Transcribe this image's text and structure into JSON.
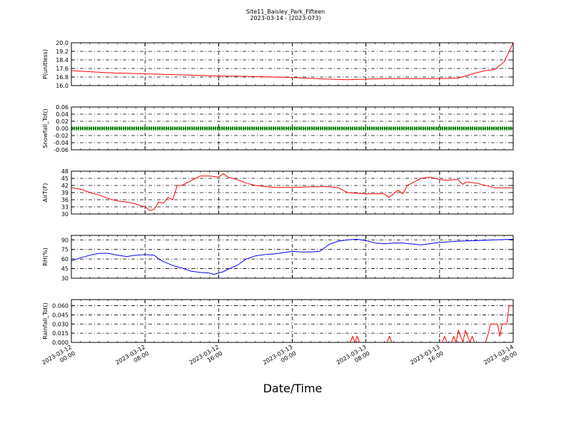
{
  "figure": {
    "title": "Site11_Baisley_Park_Fifteen",
    "subtitle": "2023-03-14 - (2023-073)",
    "xlabel": "Date/Time"
  },
  "chart_data": {
    "type": "line",
    "x_ticks": [
      "2023-03-12 00:00",
      "2023-03-12 08:00",
      "2023-03-12 16:00",
      "2023-03-13 00:00",
      "2023-03-13 08:00",
      "2023-03-13 16:00",
      "2023-03-14 00:00"
    ],
    "x_range": [
      "2023-03-12 00:00",
      "2023-03-14 00:00"
    ],
    "grid": true,
    "panels": [
      {
        "ylabel": "P(unitless)",
        "ylim": [
          16.0,
          20.0
        ],
        "yticks": [
          "16.0",
          "16.8",
          "17.6",
          "18.4",
          "19.2",
          "20.0"
        ],
        "color": "#ff0000",
        "x_hours": [
          0,
          4,
          8,
          12,
          16,
          20,
          24,
          28,
          30,
          32,
          34,
          36,
          38,
          40,
          42,
          44,
          45,
          46,
          47,
          47.5,
          48
        ],
        "values": [
          17.4,
          17.2,
          17.1,
          17.0,
          16.9,
          16.85,
          16.75,
          16.6,
          16.55,
          16.6,
          16.65,
          16.65,
          16.65,
          16.65,
          16.7,
          17.2,
          17.4,
          17.5,
          18.2,
          19.1,
          20.0
        ]
      },
      {
        "ylabel": "Snowfall_Tot()",
        "ylim": [
          -0.06,
          0.06
        ],
        "yticks": [
          "-0.06",
          "-0.04",
          "-0.02",
          "0.00",
          "0.02",
          "0.04",
          "0.06"
        ],
        "color": "#008000",
        "x_hours": [
          0,
          48
        ],
        "values": [
          0,
          0
        ]
      },
      {
        "ylabel": "AirT(F)",
        "ylim": [
          30,
          48
        ],
        "yticks": [
          "30",
          "33",
          "36",
          "39",
          "42",
          "45",
          "48"
        ],
        "color": "#ff0000",
        "x_hours": [
          0,
          1,
          2,
          3,
          4,
          5,
          6,
          7,
          7.5,
          8,
          8.5,
          9,
          9.5,
          10,
          10.5,
          11,
          11.5,
          12,
          13,
          14,
          15,
          16,
          16.5,
          17,
          18,
          19,
          20,
          22,
          24,
          26,
          28,
          29,
          30,
          32,
          33,
          33.5,
          34,
          34.5,
          35,
          35.5,
          36,
          36.5,
          37,
          38,
          39,
          40,
          41,
          41.5,
          42,
          42.5,
          43,
          44,
          46,
          48
        ],
        "values": [
          41,
          40.5,
          39,
          38,
          36.5,
          35.5,
          35,
          34.2,
          33.5,
          33,
          31.5,
          32,
          35,
          34.5,
          37,
          36,
          42,
          42,
          44,
          46,
          46,
          45.5,
          47,
          45.5,
          44.5,
          43,
          42,
          41.2,
          41.2,
          41.5,
          41.5,
          41,
          39,
          38.5,
          38.5,
          38.5,
          38.5,
          37,
          38.5,
          40,
          38.5,
          42,
          43,
          45,
          45.5,
          44.5,
          44.2,
          44.5,
          44.5,
          42.5,
          43.5,
          43,
          41,
          41
        ]
      },
      {
        "ylabel": "RH(%)",
        "ylim": [
          30,
          97
        ],
        "yticks": [
          "30",
          "45",
          "60",
          "75",
          "90"
        ],
        "color": "#0000ff",
        "x_hours": [
          0,
          1,
          2,
          3,
          4,
          5,
          6,
          7,
          8,
          9,
          9.5,
          10,
          11,
          12,
          13,
          14,
          15,
          15.5,
          16,
          16.5,
          17,
          18,
          19,
          20,
          21,
          22,
          23,
          24,
          25,
          26,
          27,
          28,
          29,
          30,
          31,
          32,
          33,
          34,
          35,
          36,
          38,
          40,
          42,
          44,
          46,
          48
        ],
        "values": [
          57,
          62,
          66,
          69,
          69,
          66,
          64,
          66,
          67,
          66,
          60,
          56,
          50,
          46,
          41,
          39,
          38,
          36,
          38,
          40,
          44,
          50,
          60,
          65,
          67,
          68,
          70,
          72,
          71,
          71,
          72,
          83,
          88,
          90,
          91,
          89,
          85,
          84,
          85,
          85,
          82,
          86,
          88,
          89,
          90,
          91
        ]
      },
      {
        "ylabel": "Rainfall_Tot()",
        "ylim": [
          0,
          0.07
        ],
        "yticks": [
          "0.000",
          "0.015",
          "0.030",
          "0.045",
          "0.060"
        ],
        "color": "#ff0000",
        "x_hours": [
          0,
          30.3,
          30.55,
          30.8,
          31.05,
          31.3,
          34.3,
          34.55,
          34.8,
          40.3,
          40.55,
          40.8,
          41.3,
          41.55,
          41.8,
          42.05,
          42.3,
          42.55,
          42.8,
          43.3,
          43.55,
          43.8,
          44.3,
          45,
          45.3,
          45.55,
          45.8,
          46,
          46.3,
          46.55,
          46.8,
          47,
          47.3,
          47.55,
          47.8,
          48
        ],
        "values": [
          0,
          0,
          0.01,
          0,
          0.01,
          0,
          0,
          0.01,
          0,
          0,
          0.01,
          0,
          0,
          0.01,
          0,
          0.02,
          0.01,
          0,
          0.02,
          0,
          0.01,
          0,
          0,
          0,
          0.015,
          0.03,
          0.03,
          0.03,
          0.03,
          0.01,
          0.03,
          0.03,
          0.03,
          0.06,
          0.06,
          0.06
        ]
      }
    ]
  }
}
